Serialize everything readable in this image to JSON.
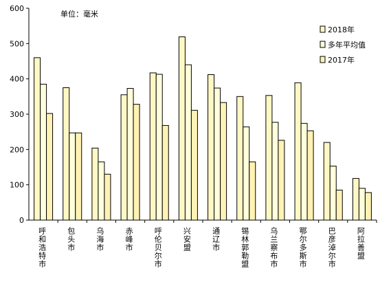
{
  "chart_data": {
    "type": "bar",
    "annotation": "单位：毫米",
    "categories": [
      "呼和浩特市",
      "包头市",
      "乌海市",
      "赤峰市",
      "呼伦贝尔市",
      "兴安盟",
      "通辽市",
      "锡林郭勒盟",
      "乌兰察布市",
      "鄂尔多斯市",
      "巴彦淖尔市",
      "阿拉善盟"
    ],
    "series": [
      {
        "name": "2018年",
        "color": "#fff8c4",
        "values": [
          460,
          375,
          204,
          355,
          417,
          519,
          412,
          350,
          353,
          389,
          220,
          118
        ]
      },
      {
        "name": "多年平均值",
        "color": "#ffffdc",
        "values": [
          385,
          247,
          165,
          373,
          413,
          440,
          374,
          264,
          277,
          274,
          153,
          90
        ]
      },
      {
        "name": "2017年",
        "color": "#fff2b4",
        "values": [
          302,
          247,
          130,
          328,
          268,
          311,
          333,
          165,
          226,
          253,
          85,
          78
        ]
      }
    ],
    "ylim": [
      0,
      600
    ],
    "yticks": [
      0,
      100,
      200,
      300,
      400,
      500,
      600
    ],
    "legend": "upper right"
  }
}
